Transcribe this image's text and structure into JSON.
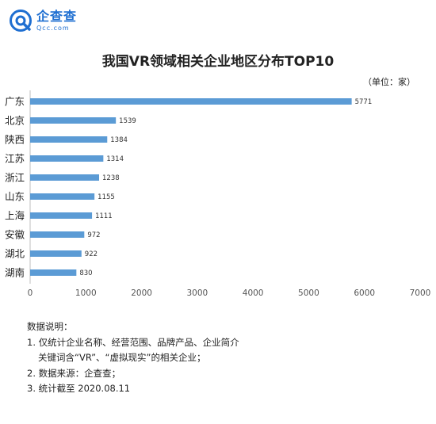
{
  "brand": {
    "name": "企查查",
    "domain": "Qcc.com",
    "color": "#1f6fd1"
  },
  "chart_data": {
    "type": "bar",
    "orientation": "horizontal",
    "title": "我国VR领域相关企业地区分布TOP10",
    "unit_label": "（单位：家）",
    "categories": [
      "广东",
      "北京",
      "陕西",
      "江苏",
      "浙江",
      "山东",
      "上海",
      "安徽",
      "湖北",
      "湖南"
    ],
    "values": [
      5771,
      1539,
      1384,
      1314,
      1238,
      1155,
      1111,
      972,
      922,
      830
    ],
    "xlim": [
      0,
      7000
    ],
    "xticks": [
      0,
      1000,
      2000,
      3000,
      4000,
      5000,
      6000,
      7000
    ],
    "bar_color": "#5b9bd5",
    "grid": false
  },
  "notes": {
    "heading": "数据说明：",
    "items": [
      "1. 仅统计企业名称、经营范围、品牌产品、企业简介",
      "关键词含“VR”、“虚拟现实”的相关企业；",
      "2. 数据来源：企查查；",
      "3. 统计截至 2020.08.11"
    ]
  }
}
